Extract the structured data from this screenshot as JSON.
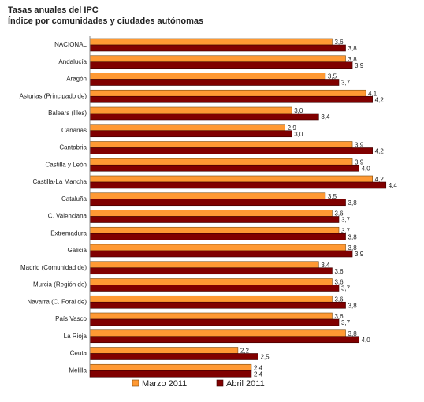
{
  "header": {
    "title": "Tasas anuales del IPC",
    "subtitle": "Índice por comunidades y ciudades autónomas"
  },
  "colors": {
    "series1": "#FF9933",
    "series1_stroke": "#7a4a10",
    "series2": "#800000",
    "series2_stroke": "#3a0000",
    "axis": "#888888"
  },
  "chart_data": {
    "type": "bar",
    "orientation": "horizontal",
    "categories": [
      "NACIONAL",
      "Andalucía",
      "Aragón",
      "Asturias (Principado de)",
      "Balears (Illes)",
      "Canarias",
      "Cantabria",
      "Castilla y León",
      "Castilla-La Mancha",
      "Cataluña",
      "C. Valenciana",
      "Extremadura",
      "Galicia",
      "Madrid (Comunidad de)",
      "Murcia (Región de)",
      "Navarra (C. Foral de)",
      "País Vasco",
      "La Rioja",
      "Ceuta",
      "Melilla"
    ],
    "series": [
      {
        "name": "Marzo 2011",
        "values": [
          3.6,
          3.8,
          3.5,
          4.1,
          3.0,
          2.9,
          3.9,
          3.9,
          4.2,
          3.5,
          3.6,
          3.7,
          3.8,
          3.4,
          3.6,
          3.6,
          3.6,
          3.8,
          2.2,
          2.4
        ],
        "labels": [
          "3,6",
          "3,8",
          "3,5",
          "4,1",
          "3,0",
          "2,9",
          "3,9",
          "3,9",
          "4,2",
          "3,5",
          "3,6",
          "3,7",
          "3,8",
          "3,4",
          "3,6",
          "3,6",
          "3,6",
          "3,8",
          "2,2",
          "2,4"
        ]
      },
      {
        "name": "Abril 2011",
        "values": [
          3.8,
          3.9,
          3.7,
          4.2,
          3.4,
          3.0,
          4.2,
          4.0,
          4.4,
          3.8,
          3.7,
          3.8,
          3.9,
          3.6,
          3.7,
          3.8,
          3.7,
          4.0,
          2.5,
          2.4
        ],
        "labels": [
          "3,8",
          "3,9",
          "3,7",
          "4,2",
          "3,4",
          "3,0",
          "4,2",
          "4,0",
          "4,4",
          "3,8",
          "3,7",
          "3,8",
          "3,9",
          "3,6",
          "3,7",
          "3,8",
          "3,7",
          "4,0",
          "2,5",
          "2,4"
        ]
      }
    ],
    "xlim": [
      0,
      4.5
    ],
    "grid": false,
    "legend_position": "bottom"
  }
}
